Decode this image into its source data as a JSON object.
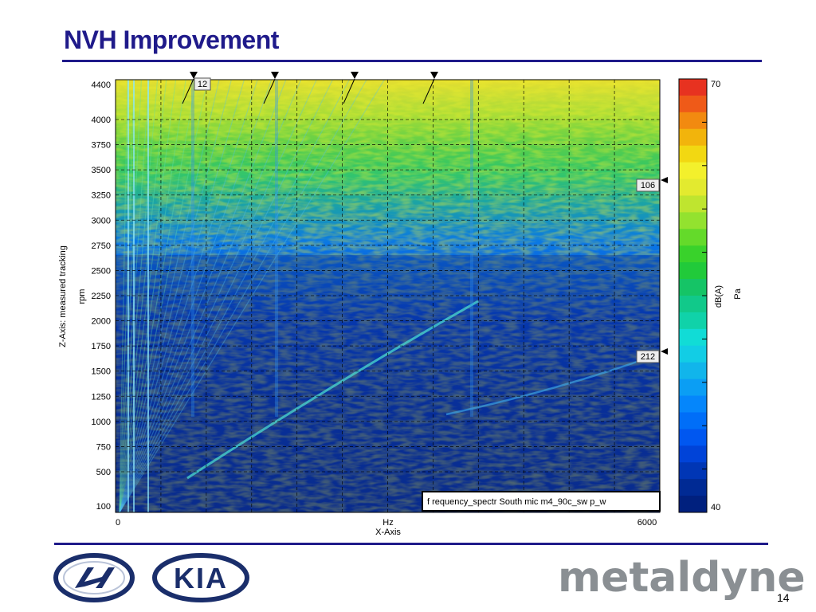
{
  "slide": {
    "title": "NVH Improvement",
    "page_number": "14",
    "logos": {
      "left": "KIA",
      "right": "metaldyne"
    }
  },
  "colors": {
    "brand_blue": "#1f1a8a",
    "metaldyne_gray": "#8a8f93",
    "plot_background": "#0c2f8e"
  },
  "chart_data": {
    "type": "heatmap",
    "x_axis": {
      "label": "X-Axis",
      "unit_label": "Hz",
      "range": [
        0,
        6000
      ],
      "tick_labels": [
        "0",
        "6000"
      ]
    },
    "y_axis": {
      "label": "Z-Axis: measured tracking",
      "unit_label": "rpm",
      "range": [
        100,
        4400
      ],
      "ticks": [
        100,
        500,
        750,
        1000,
        1250,
        1500,
        1750,
        2000,
        2250,
        2500,
        2750,
        3000,
        3250,
        3500,
        3750,
        4000,
        4400
      ]
    },
    "colorbar": {
      "min_label": "40",
      "max_label": "70",
      "unit": "dB(A)",
      "unit2": "Pa",
      "min": 40,
      "max": 70,
      "colors": [
        "#00207e",
        "#002a94",
        "#0036b5",
        "#0043d8",
        "#0057f0",
        "#006ef8",
        "#0586fb",
        "#0b9ef4",
        "#11b5eb",
        "#12cde5",
        "#11dcd6",
        "#10d2a9",
        "#11c98a",
        "#15c466",
        "#21ca3a",
        "#39d22b",
        "#64da2a",
        "#93e22f",
        "#bfe52f",
        "#e3ea2f",
        "#f3f02c",
        "#f2d812",
        "#f2b40c",
        "#f28a10",
        "#ef5a18",
        "#e73220"
      ]
    },
    "order_markers": [
      {
        "label": "12",
        "edge": "top"
      },
      {
        "label": "106",
        "edge": "right"
      },
      {
        "label": "212",
        "edge": "right"
      }
    ],
    "annotation": "f requency_spectr South mic  m4_90c_sw p_w",
    "grid": true
  }
}
